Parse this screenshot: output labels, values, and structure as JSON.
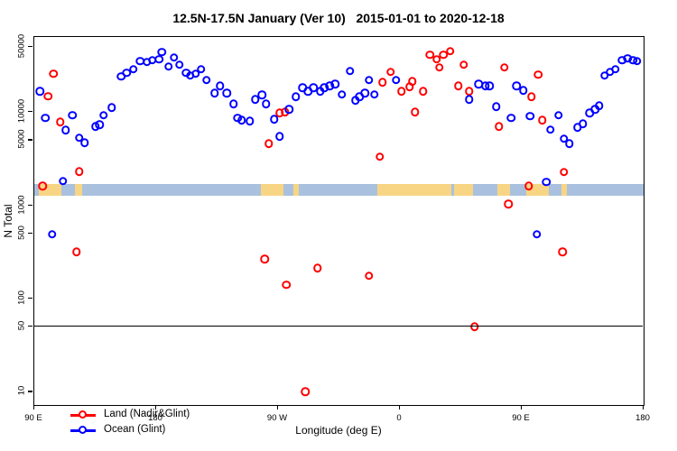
{
  "title": "12.5N-17.5N January (Ver 10)   2015-01-01 to 2020-12-18",
  "chart_data": {
    "type": "scatter",
    "title": "12.5N-17.5N January (Ver 10)   2015-01-01 to 2020-12-18",
    "xlabel": "Longitude (deg E)",
    "ylabel": "N Total",
    "x_axis": {
      "range": [
        90,
        540
      ],
      "ticks": [
        90,
        180,
        270,
        360,
        450,
        540
      ],
      "tick_labels": [
        "90 E",
        "180",
        "90 W",
        "0",
        "90 E",
        "180"
      ],
      "note": "longitude axis wraps: 90E east through 180, 90W, 0, 90E to 180"
    },
    "y_axis": {
      "scale": "log10",
      "range": [
        7.2,
        63700
      ],
      "ticks": [
        10,
        50,
        100,
        500,
        1000,
        5000,
        10000,
        50000
      ],
      "tick_labels": [
        "10",
        "50",
        "100",
        "500",
        "1000",
        "5000",
        "10000",
        "50000"
      ],
      "label_rotation_deg": -90
    },
    "grid": false,
    "reference_line_y": 50,
    "map_band": {
      "description": "world-map strip of the 12.5N-17.5N latitude band drawn across the plot",
      "band_n_range": [
        1260,
        1690
      ],
      "ocean_color": "#a9c1de",
      "land_color": "#f8d584",
      "land_segments_axis_deg": [
        [
          93.5,
          110
        ],
        [
          120,
          125
        ],
        [
          257,
          274
        ],
        [
          281,
          285
        ],
        [
          343,
          398
        ],
        [
          400,
          414
        ],
        [
          432,
          441
        ],
        [
          453,
          470
        ],
        [
          479,
          483.5
        ]
      ]
    },
    "legend_position": "bottom-left",
    "series": [
      {
        "name": "Land (Nadir&Glint)",
        "color": "#ff0000",
        "marker": "open-circle",
        "points": [
          [
            96,
            1600
          ],
          [
            100,
            14800
          ],
          [
            104,
            25700
          ],
          [
            109,
            7800
          ],
          [
            121,
            315
          ],
          [
            123,
            2300
          ],
          [
            260,
            265
          ],
          [
            263,
            4600
          ],
          [
            271,
            9800
          ],
          [
            275,
            10000
          ],
          [
            276,
            140
          ],
          [
            290,
            10
          ],
          [
            299,
            211
          ],
          [
            337,
            176
          ],
          [
            345,
            3300
          ],
          [
            347,
            20900
          ],
          [
            353,
            26800
          ],
          [
            361,
            16600
          ],
          [
            367,
            18600
          ],
          [
            369,
            21400
          ],
          [
            371,
            10000
          ],
          [
            377,
            16600
          ],
          [
            382,
            41000
          ],
          [
            387,
            36800
          ],
          [
            389,
            30000
          ],
          [
            392,
            41000
          ],
          [
            397,
            44800
          ],
          [
            403,
            19000
          ],
          [
            407,
            32100
          ],
          [
            411,
            16600
          ],
          [
            415,
            50
          ],
          [
            433,
            7000
          ],
          [
            437,
            30000
          ],
          [
            440,
            1030
          ],
          [
            455,
            1600
          ],
          [
            457,
            14500
          ],
          [
            462,
            25100
          ],
          [
            465,
            8200
          ],
          [
            480,
            315
          ],
          [
            481,
            2260
          ]
        ]
      },
      {
        "name": "Ocean (Glint)",
        "color": "#0000ff",
        "marker": "open-circle",
        "points": [
          [
            94,
            16600
          ],
          [
            98,
            8600
          ],
          [
            103,
            490
          ],
          [
            111,
            1810
          ],
          [
            113,
            6400
          ],
          [
            118,
            9200
          ],
          [
            123,
            5300
          ],
          [
            127,
            4700
          ],
          [
            135,
            7000
          ],
          [
            138,
            7300
          ],
          [
            141,
            9200
          ],
          [
            147,
            11200
          ],
          [
            154,
            24000
          ],
          [
            158,
            26200
          ],
          [
            163,
            28700
          ],
          [
            168,
            35200
          ],
          [
            173,
            34400
          ],
          [
            177,
            36000
          ],
          [
            182,
            36800
          ],
          [
            184,
            44000
          ],
          [
            189,
            30700
          ],
          [
            193,
            38500
          ],
          [
            197,
            32100
          ],
          [
            202,
            26200
          ],
          [
            205,
            24500
          ],
          [
            209,
            25700
          ],
          [
            213,
            28700
          ],
          [
            217,
            21900
          ],
          [
            223,
            15900
          ],
          [
            227,
            19000
          ],
          [
            232,
            15900
          ],
          [
            237,
            12200
          ],
          [
            240,
            8600
          ],
          [
            243,
            8200
          ],
          [
            249,
            8000
          ],
          [
            253,
            13600
          ],
          [
            258,
            15200
          ],
          [
            261,
            12200
          ],
          [
            267,
            8400
          ],
          [
            271,
            5500
          ],
          [
            278,
            10700
          ],
          [
            283,
            14500
          ],
          [
            288,
            18200
          ],
          [
            292,
            16600
          ],
          [
            296,
            18200
          ],
          [
            301,
            16600
          ],
          [
            304,
            18200
          ],
          [
            308,
            19000
          ],
          [
            312,
            19900
          ],
          [
            317,
            15500
          ],
          [
            323,
            27400
          ],
          [
            327,
            13300
          ],
          [
            330,
            14500
          ],
          [
            334,
            15900
          ],
          [
            337,
            21900
          ],
          [
            341,
            15500
          ],
          [
            357,
            21900
          ],
          [
            411,
            13600
          ],
          [
            418,
            19900
          ],
          [
            423,
            19000
          ],
          [
            426,
            19000
          ],
          [
            431,
            11400
          ],
          [
            442,
            8600
          ],
          [
            446,
            19000
          ],
          [
            451,
            17000
          ],
          [
            456,
            9000
          ],
          [
            461,
            490
          ],
          [
            468,
            1780
          ],
          [
            471,
            6500
          ],
          [
            477,
            9200
          ],
          [
            481,
            5200
          ],
          [
            485,
            4600
          ],
          [
            491,
            6800
          ],
          [
            495,
            7500
          ],
          [
            500,
            9800
          ],
          [
            504,
            10700
          ],
          [
            507,
            11700
          ],
          [
            511,
            24500
          ],
          [
            515,
            26800
          ],
          [
            519,
            28700
          ],
          [
            524,
            36000
          ],
          [
            528,
            37600
          ],
          [
            532,
            36000
          ],
          [
            535,
            35200
          ]
        ]
      }
    ]
  },
  "legend": {
    "items": [
      {
        "label": "Land (Nadir&Glint)",
        "color": "#ff0000"
      },
      {
        "label": "Ocean (Glint)",
        "color": "#0000ff"
      }
    ]
  }
}
